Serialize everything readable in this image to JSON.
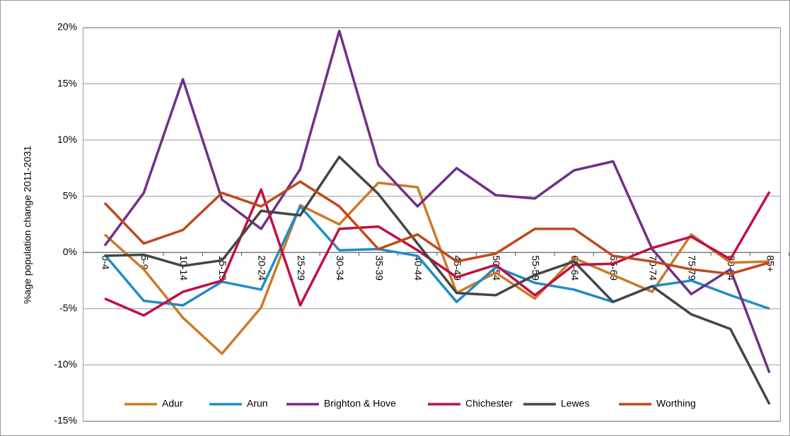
{
  "chart_data": {
    "type": "line",
    "y_label": "%age population change 2011-2031",
    "categories": [
      "0-4",
      "5-9",
      "10-14",
      "15-19",
      "20-24",
      "25-29",
      "30-34",
      "35-39",
      "40-44",
      "45-49",
      "50-54",
      "55-59",
      "60-64",
      "65-69",
      "70-74",
      "75-79",
      "80-84",
      "85+"
    ],
    "series": [
      {
        "name": "Adur",
        "color": "#cc7a29",
        "values": [
          1.6,
          -1.5,
          -5.8,
          -9,
          -4.9,
          4.2,
          2.5,
          6.2,
          5.8,
          -3.6,
          -1.8,
          -4.1,
          -0.5,
          -2,
          -3.5,
          1.6,
          -0.9,
          -0.8
        ]
      },
      {
        "name": "Arun",
        "color": "#1f8dc6",
        "values": [
          -0.2,
          -4.3,
          -4.7,
          -2.6,
          -3.3,
          4.1,
          0.2,
          0.3,
          -0.3,
          -4.4,
          -1.3,
          -2.7,
          -3.3,
          -4.4,
          -3,
          -2.5,
          -3.8,
          -5
        ]
      },
      {
        "name": "Brighton & Hove",
        "color": "#702f8a",
        "values": [
          0.6,
          5.3,
          15.4,
          4.7,
          2.1,
          7.4,
          19.7,
          7.8,
          4.1,
          7.5,
          5.1,
          4.8,
          7.3,
          8.1,
          0.3,
          -3.7,
          -1.5,
          -10.7
        ]
      },
      {
        "name": "Chichester",
        "color": "#c0103f",
        "values": [
          -4.1,
          -5.6,
          -3.5,
          -2.5,
          5.6,
          -4.7,
          2.1,
          2.3,
          0.2,
          -2.2,
          -1.1,
          -3.8,
          -1.1,
          -1,
          0.4,
          1.4,
          -0.6,
          5.4
        ]
      },
      {
        "name": "Lewes",
        "color": "#454545",
        "values": [
          -0.3,
          -0.2,
          -1.2,
          -0.7,
          3.7,
          3.3,
          8.5,
          5.2,
          0.8,
          -3.6,
          -3.8,
          -2,
          -0.8,
          -4.4,
          -3,
          -5.5,
          -6.8,
          -13.5
        ]
      },
      {
        "name": "Worthing",
        "color": "#bd4a1c",
        "values": [
          4.4,
          0.8,
          2,
          5.3,
          4.1,
          6.3,
          4.1,
          0.3,
          1.6,
          -0.8,
          -0.1,
          2.1,
          2.1,
          -0.3,
          -0.8,
          -1.5,
          -1.9,
          -0.9
        ]
      }
    ],
    "ylim": [
      -15,
      20
    ],
    "yticks": [
      {
        "value": -15,
        "label": "-15%"
      },
      {
        "value": -10,
        "label": "-10%"
      },
      {
        "value": -5,
        "label": "-5%"
      },
      {
        "value": 0,
        "label": "0%"
      },
      {
        "value": 5,
        "label": "5%"
      },
      {
        "value": 10,
        "label": "10%"
      },
      {
        "value": 15,
        "label": "15%"
      },
      {
        "value": 20,
        "label": "20%"
      }
    ],
    "grid": true,
    "legend": "bottom"
  }
}
